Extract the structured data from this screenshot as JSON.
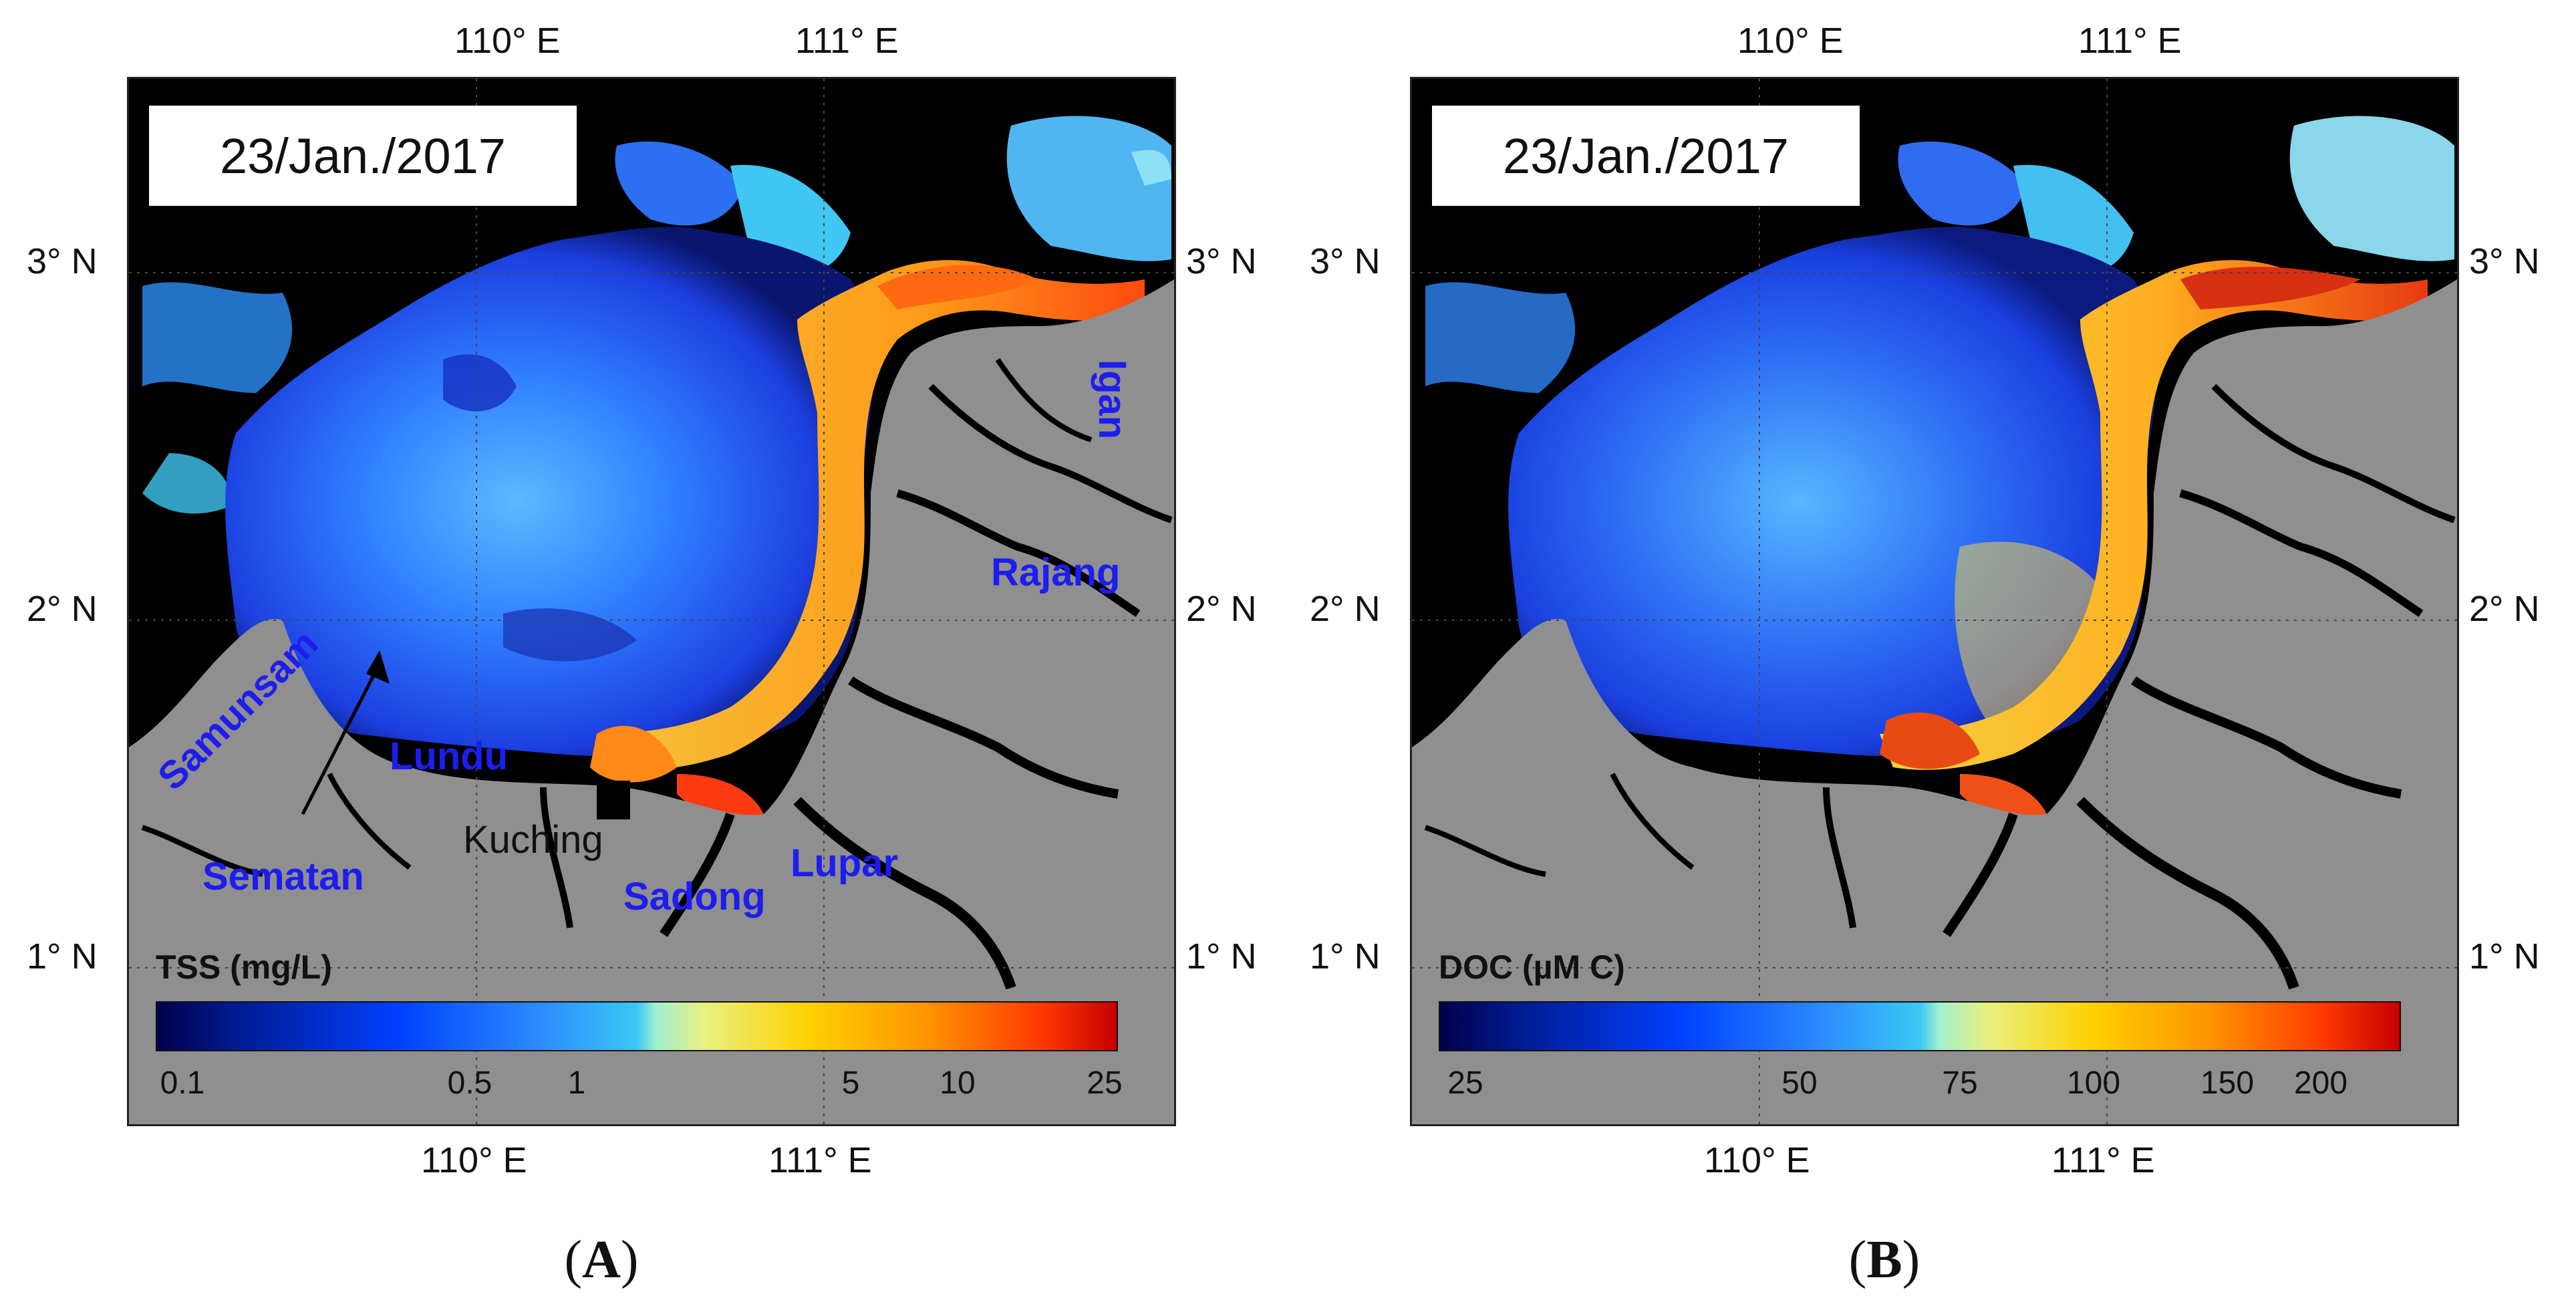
{
  "colors": {
    "land": "#8f8f8f",
    "no_data": "#000000",
    "label_blue": "#1d1df0",
    "label_black": "#111111"
  },
  "axes": {
    "lon_ticks": [
      "110° E",
      "111° E"
    ],
    "lat_ticks": [
      "3° N",
      "2° N",
      "1° N"
    ]
  },
  "panels": [
    {
      "label": "A",
      "date": "23/Jan./2017",
      "colorbar": {
        "title": "TSS (mg/L)",
        "ticks": [
          "0.1",
          "0.5",
          "1",
          "5",
          "10",
          "25"
        ],
        "scale": "log"
      },
      "places": [
        {
          "name": "Samunsam",
          "color": "blue"
        },
        {
          "name": "Lundu",
          "color": "blue"
        },
        {
          "name": "Sematan",
          "color": "blue"
        },
        {
          "name": "Kuching",
          "color": "black"
        },
        {
          "name": "Sadong",
          "color": "blue"
        },
        {
          "name": "Lupar",
          "color": "blue"
        },
        {
          "name": "Rajang",
          "color": "blue"
        },
        {
          "name": "Igan",
          "color": "blue"
        }
      ]
    },
    {
      "label": "B",
      "date": "23/Jan./2017",
      "colorbar": {
        "title": "DOC (µM C)",
        "ticks": [
          "25",
          "50",
          "75",
          "100",
          "150",
          "200"
        ],
        "scale": "log"
      },
      "places": []
    }
  ]
}
